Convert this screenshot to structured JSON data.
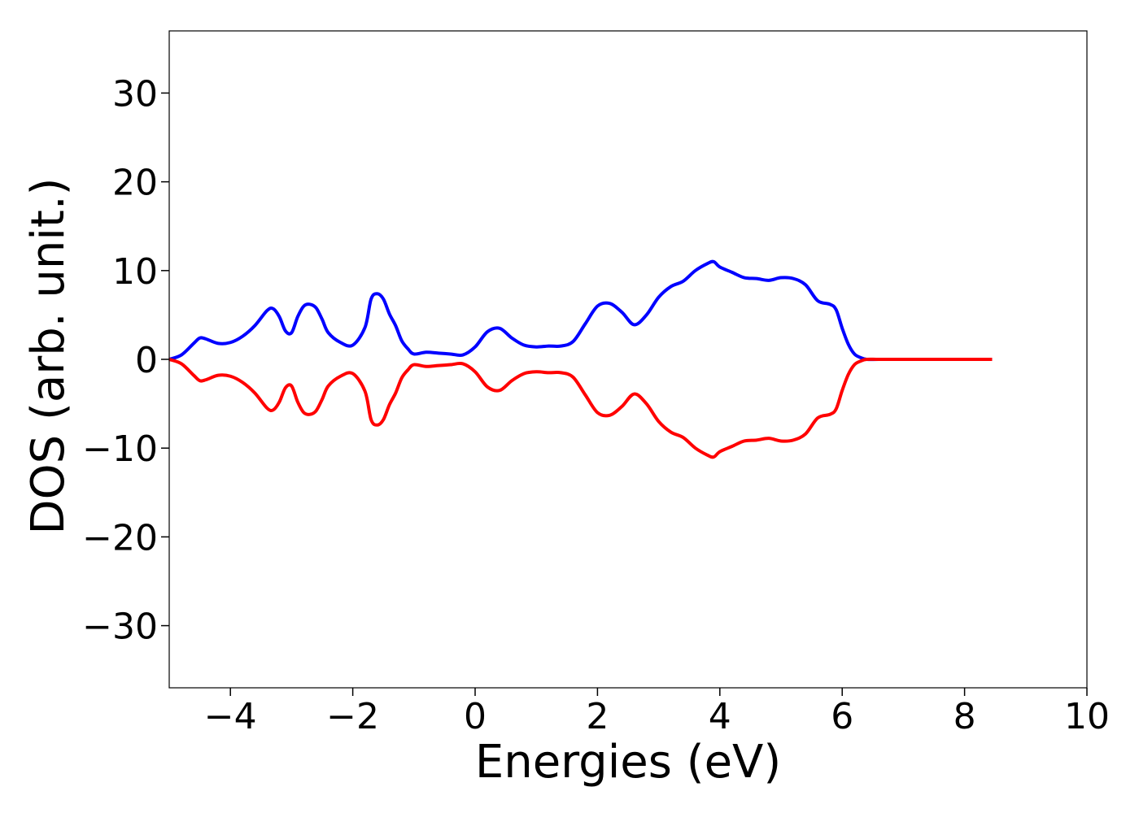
{
  "chart_data": {
    "type": "line",
    "title": "",
    "xlabel": "Energies (eV)",
    "ylabel": "DOS (arb. unit.)",
    "xlim": [
      -5,
      10
    ],
    "ylim": [
      -37,
      37
    ],
    "grid": false,
    "legend": "none",
    "xticks": [
      -4,
      -2,
      0,
      2,
      4,
      6,
      8,
      10
    ],
    "yticks": [
      -30,
      -20,
      -10,
      0,
      10,
      20,
      30
    ],
    "xtick_labels": [
      "−4",
      "−2",
      "0",
      "2",
      "4",
      "6",
      "8",
      "10"
    ],
    "ytick_labels": [
      "−30",
      "−20",
      "−10",
      "0",
      "10",
      "20",
      "30"
    ],
    "series": [
      {
        "color": "#0000ff",
        "x": [
          -5.0,
          -4.8,
          -4.6,
          -4.5,
          -4.4,
          -4.2,
          -4.0,
          -3.8,
          -3.6,
          -3.4,
          -3.3,
          -3.2,
          -3.1,
          -3.0,
          -2.9,
          -2.8,
          -2.7,
          -2.6,
          -2.5,
          -2.4,
          -2.2,
          -2.0,
          -1.8,
          -1.7,
          -1.6,
          -1.5,
          -1.4,
          -1.3,
          -1.2,
          -1.1,
          -1.0,
          -0.8,
          -0.6,
          -0.4,
          -0.2,
          0.0,
          0.2,
          0.4,
          0.6,
          0.8,
          1.0,
          1.2,
          1.4,
          1.6,
          1.8,
          2.0,
          2.2,
          2.4,
          2.6,
          2.8,
          3.0,
          3.2,
          3.4,
          3.6,
          3.8,
          3.9,
          4.0,
          4.2,
          4.4,
          4.6,
          4.8,
          5.0,
          5.2,
          5.4,
          5.6,
          5.8,
          5.9,
          6.0,
          6.1,
          6.2,
          6.3,
          6.4,
          6.6,
          7.0,
          7.5,
          8.0,
          8.45
        ],
        "values": [
          0.0,
          0.5,
          1.8,
          2.4,
          2.3,
          1.8,
          1.9,
          2.6,
          3.8,
          5.5,
          5.7,
          4.8,
          3.2,
          3.0,
          4.8,
          6.0,
          6.2,
          5.8,
          4.5,
          3.0,
          1.9,
          1.6,
          3.6,
          6.8,
          7.4,
          6.8,
          5.1,
          3.8,
          2.1,
          1.2,
          0.6,
          0.8,
          0.7,
          0.6,
          0.5,
          1.4,
          3.1,
          3.5,
          2.4,
          1.6,
          1.4,
          1.5,
          1.5,
          2.0,
          4.0,
          6.0,
          6.3,
          5.3,
          3.9,
          5.0,
          7.0,
          8.2,
          8.8,
          10.0,
          10.8,
          11.0,
          10.4,
          9.8,
          9.2,
          9.1,
          8.9,
          9.2,
          9.1,
          8.4,
          6.6,
          6.2,
          5.6,
          3.5,
          1.7,
          0.6,
          0.2,
          0.0,
          0.0,
          0.0,
          0.0,
          0.0,
          0.0
        ]
      },
      {
        "color": "#ff0000",
        "x": [
          -5.0,
          -4.8,
          -4.6,
          -4.5,
          -4.4,
          -4.2,
          -4.0,
          -3.8,
          -3.6,
          -3.4,
          -3.3,
          -3.2,
          -3.1,
          -3.0,
          -2.9,
          -2.8,
          -2.7,
          -2.6,
          -2.5,
          -2.4,
          -2.2,
          -2.0,
          -1.8,
          -1.7,
          -1.6,
          -1.5,
          -1.4,
          -1.3,
          -1.2,
          -1.1,
          -1.0,
          -0.8,
          -0.6,
          -0.4,
          -0.2,
          0.0,
          0.2,
          0.4,
          0.6,
          0.8,
          1.0,
          1.2,
          1.4,
          1.6,
          1.8,
          2.0,
          2.2,
          2.4,
          2.6,
          2.8,
          3.0,
          3.2,
          3.4,
          3.6,
          3.8,
          3.9,
          4.0,
          4.2,
          4.4,
          4.6,
          4.8,
          5.0,
          5.2,
          5.4,
          5.6,
          5.8,
          5.9,
          6.0,
          6.1,
          6.2,
          6.3,
          6.4,
          6.6,
          7.0,
          7.5,
          8.0,
          8.45
        ],
        "values": [
          0.0,
          -0.5,
          -1.8,
          -2.4,
          -2.3,
          -1.8,
          -1.9,
          -2.6,
          -3.8,
          -5.5,
          -5.7,
          -4.8,
          -3.2,
          -3.0,
          -4.8,
          -6.0,
          -6.2,
          -5.8,
          -4.5,
          -3.0,
          -1.9,
          -1.6,
          -3.6,
          -6.8,
          -7.4,
          -6.8,
          -5.1,
          -3.8,
          -2.1,
          -1.2,
          -0.6,
          -0.8,
          -0.7,
          -0.6,
          -0.5,
          -1.4,
          -3.1,
          -3.5,
          -2.4,
          -1.6,
          -1.4,
          -1.5,
          -1.5,
          -2.0,
          -4.0,
          -6.0,
          -6.3,
          -5.3,
          -3.9,
          -5.0,
          -7.0,
          -8.2,
          -8.8,
          -10.0,
          -10.8,
          -11.0,
          -10.4,
          -9.8,
          -9.2,
          -9.1,
          -8.9,
          -9.2,
          -9.1,
          -8.4,
          -6.6,
          -6.2,
          -5.6,
          -3.5,
          -1.7,
          -0.6,
          -0.2,
          0.0,
          0.0,
          0.0,
          0.0,
          0.0,
          0.0
        ]
      }
    ]
  }
}
